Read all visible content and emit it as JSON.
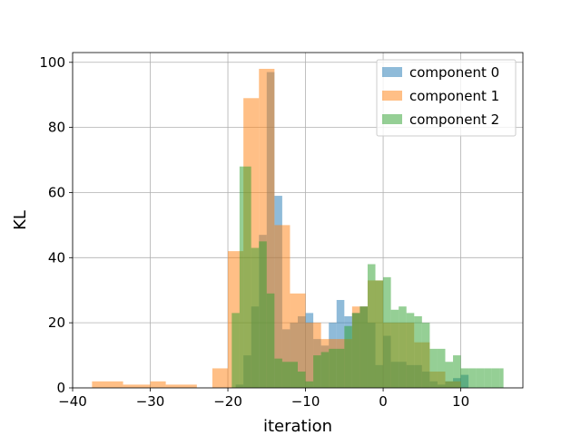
{
  "chart_data": {
    "type": "bar",
    "subtype": "overlapping histogram",
    "title": "",
    "xlabel": "iteration",
    "ylabel": "KL",
    "xlim": [
      -40,
      18
    ],
    "ylim": [
      0,
      103
    ],
    "xticks": [
      -40,
      -30,
      -20,
      -10,
      0,
      10
    ],
    "yticks": [
      0,
      20,
      40,
      60,
      80,
      100
    ],
    "grid": true,
    "legend_position": "top-right",
    "bar_opacity": 0.5,
    "series": [
      {
        "name": "component 0",
        "color": "#1f77b4",
        "bins": [
          [
            -19,
            -18,
            1
          ],
          [
            -18,
            -17,
            10
          ],
          [
            -17,
            -16,
            25
          ],
          [
            -16,
            -15,
            47
          ],
          [
            -15,
            -14,
            97
          ],
          [
            -14,
            -13,
            59
          ],
          [
            -13,
            -12,
            18
          ],
          [
            -12,
            -11,
            20
          ],
          [
            -11,
            -10,
            22
          ],
          [
            -10,
            -9,
            23
          ],
          [
            -9,
            -8,
            15
          ],
          [
            -8,
            -7,
            13
          ],
          [
            -7,
            -6,
            20
          ],
          [
            -6,
            -5,
            27
          ],
          [
            -5,
            -4,
            22
          ],
          [
            -4,
            -3,
            23
          ],
          [
            -3,
            -2,
            25
          ],
          [
            -2,
            -1,
            20
          ],
          [
            -1,
            0,
            7
          ],
          [
            0,
            1,
            16
          ],
          [
            1,
            2,
            8
          ],
          [
            2,
            3,
            8
          ],
          [
            3,
            4,
            7
          ],
          [
            4,
            5,
            7
          ],
          [
            5,
            6,
            5
          ],
          [
            6,
            7,
            2
          ],
          [
            7,
            8,
            1
          ],
          [
            8,
            9,
            2
          ],
          [
            9,
            10,
            3
          ],
          [
            10,
            11,
            4
          ]
        ]
      },
      {
        "name": "component 1",
        "color": "#ff7f0e",
        "bins": [
          [
            -37.5,
            -33.5,
            2
          ],
          [
            -33.5,
            -30,
            1
          ],
          [
            -30,
            -28,
            2
          ],
          [
            -28,
            -24,
            1
          ],
          [
            -22,
            -20,
            6
          ],
          [
            -20,
            -18,
            42
          ],
          [
            -18,
            -16,
            89
          ],
          [
            -16,
            -14,
            98
          ],
          [
            -14,
            -12,
            50
          ],
          [
            -12,
            -10,
            29
          ],
          [
            -10,
            -8,
            20
          ],
          [
            -8,
            -6,
            15
          ],
          [
            -6,
            -4,
            15
          ],
          [
            -4,
            -2,
            25
          ],
          [
            -2,
            0,
            33
          ],
          [
            0,
            2,
            20
          ],
          [
            2,
            4,
            20
          ],
          [
            4,
            6,
            14
          ],
          [
            6,
            8,
            5
          ],
          [
            8,
            10,
            2
          ]
        ]
      },
      {
        "name": "component 2",
        "color": "#2ca02c",
        "bins": [
          [
            -19.5,
            -18.5,
            23
          ],
          [
            -18.5,
            -17,
            68
          ],
          [
            -17,
            -16,
            43
          ],
          [
            -16,
            -15,
            45
          ],
          [
            -15,
            -14,
            29
          ],
          [
            -14,
            -13,
            9
          ],
          [
            -13,
            -12,
            8
          ],
          [
            -12,
            -11,
            8
          ],
          [
            -11,
            -10,
            5
          ],
          [
            -10,
            -9,
            2
          ],
          [
            -9,
            -8,
            10
          ],
          [
            -8,
            -7,
            11
          ],
          [
            -7,
            -6,
            12
          ],
          [
            -6,
            -5,
            12
          ],
          [
            -5,
            -4,
            19
          ],
          [
            -4,
            -3,
            23
          ],
          [
            -3,
            -2,
            25
          ],
          [
            -2,
            -1,
            38
          ],
          [
            -1,
            0,
            33
          ],
          [
            0,
            1,
            34
          ],
          [
            1,
            2,
            24
          ],
          [
            2,
            3,
            25
          ],
          [
            3,
            4,
            23
          ],
          [
            4,
            5,
            22
          ],
          [
            5,
            6,
            20
          ],
          [
            6,
            7,
            12
          ],
          [
            7,
            8,
            12
          ],
          [
            8,
            9,
            8
          ],
          [
            9,
            10,
            10
          ],
          [
            10,
            11,
            6
          ],
          [
            11,
            12,
            6
          ],
          [
            12,
            13,
            6
          ],
          [
            13,
            14,
            6
          ],
          [
            14,
            15,
            6
          ],
          [
            15,
            15.5,
            6
          ]
        ]
      }
    ]
  }
}
